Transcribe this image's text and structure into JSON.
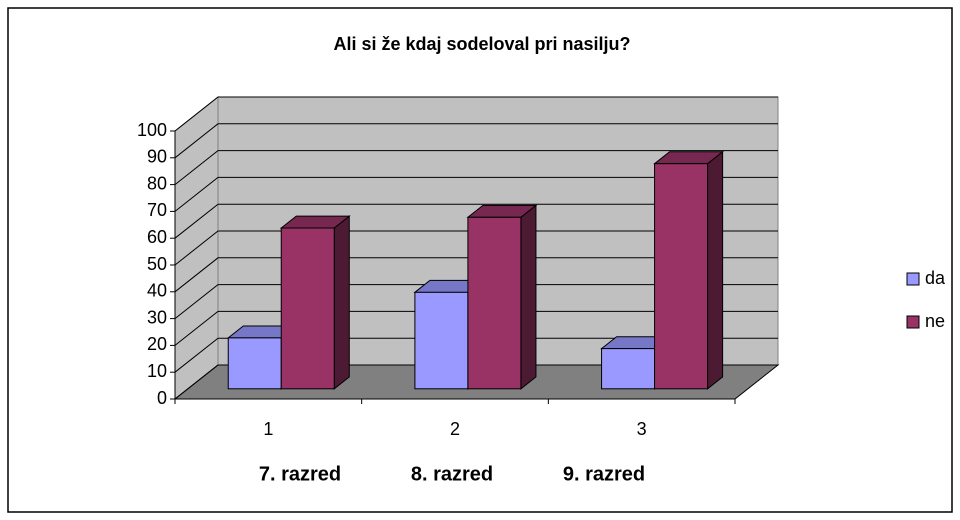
{
  "chart_data": {
    "type": "bar3d",
    "title": "Ali si že kdaj sodeloval pri nasilju?",
    "categories": [
      "1",
      "2",
      "3"
    ],
    "series": [
      {
        "name": "da",
        "color": "#9999ff",
        "values": [
          19,
          36,
          15
        ]
      },
      {
        "name": "ne",
        "color": "#993366",
        "values": [
          60,
          64,
          84
        ]
      }
    ],
    "ylim": [
      0,
      100
    ],
    "yticks": [
      0,
      10,
      20,
      30,
      40,
      50,
      60,
      70,
      80,
      90,
      100
    ],
    "grid": true,
    "legend": "right",
    "annotations": [
      "7. razred",
      "8. razred",
      "9. razred"
    ]
  }
}
